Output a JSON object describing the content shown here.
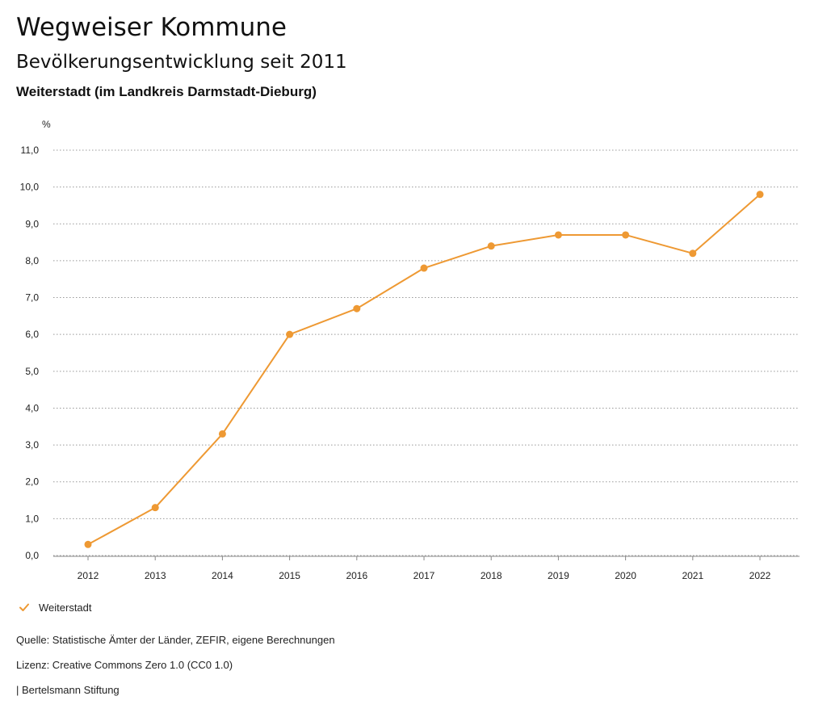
{
  "header": {
    "title": "Wegweiser Kommune",
    "subtitle": "Bevölkerungsentwicklung seit 2011",
    "region": "Weiterstadt (im Landkreis Darmstadt-Dieburg)"
  },
  "chart_data": {
    "type": "line",
    "unit_label": "%",
    "categories": [
      "2012",
      "2013",
      "2014",
      "2015",
      "2016",
      "2017",
      "2018",
      "2019",
      "2020",
      "2021",
      "2022"
    ],
    "series": [
      {
        "name": "Weiterstadt",
        "color": "#EE9933",
        "values": [
          0.3,
          1.3,
          3.3,
          6.0,
          6.7,
          7.8,
          8.4,
          8.7,
          8.7,
          8.2,
          9.8
        ]
      }
    ],
    "ylim": [
      0,
      11
    ],
    "yticks": [
      "0,0",
      "1,0",
      "2,0",
      "3,0",
      "4,0",
      "5,0",
      "6,0",
      "7,0",
      "8,0",
      "9,0",
      "10,0",
      "11,0"
    ],
    "grid": true,
    "legend_position": "bottom-left"
  },
  "legend": {
    "label": "Weiterstadt",
    "icon": "check-icon"
  },
  "footer": {
    "source": "Quelle: Statistische Ämter der Länder, ZEFIR, eigene Berechnungen",
    "license": "Lizenz: Creative Commons Zero 1.0 (CC0 1.0)",
    "publisher": "| Bertelsmann Stiftung"
  }
}
